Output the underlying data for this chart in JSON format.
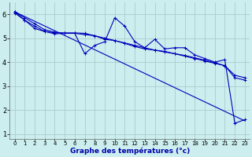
{
  "title": "Graphe des températures (°c)",
  "background_color": "#cceeee",
  "grid_color": "#aacccc",
  "line_color": "#0000bb",
  "xlim": [
    -0.5,
    23.5
  ],
  "ylim": [
    0.8,
    6.5
  ],
  "yticks": [
    1,
    2,
    3,
    4,
    5,
    6
  ],
  "xticks": [
    0,
    1,
    2,
    3,
    4,
    5,
    6,
    7,
    8,
    9,
    10,
    11,
    12,
    13,
    14,
    15,
    16,
    17,
    18,
    19,
    20,
    21,
    22,
    23
  ],
  "line1_x": [
    0,
    1,
    2,
    3,
    4,
    5,
    6,
    7,
    8,
    9,
    10,
    11,
    12,
    13,
    14,
    15,
    16,
    17,
    18,
    19,
    20,
    21,
    22,
    23
  ],
  "line1_y": [
    6.1,
    5.85,
    5.6,
    5.35,
    5.25,
    5.2,
    5.2,
    5.15,
    5.1,
    5.0,
    4.9,
    4.8,
    4.7,
    4.6,
    4.5,
    4.45,
    4.35,
    4.25,
    4.15,
    4.05,
    3.95,
    3.85,
    3.45,
    3.35
  ],
  "line2_x": [
    0,
    1,
    2,
    3,
    4,
    5,
    6,
    7,
    8,
    9,
    10,
    11,
    12,
    13,
    14,
    15,
    16,
    17,
    18,
    19,
    20,
    21,
    22,
    23
  ],
  "line2_y": [
    6.05,
    5.75,
    5.4,
    5.28,
    5.22,
    5.22,
    5.22,
    5.2,
    5.1,
    4.95,
    4.9,
    4.78,
    4.65,
    4.55,
    4.5,
    4.42,
    4.35,
    4.28,
    4.18,
    4.08,
    3.98,
    3.85,
    3.35,
    3.25
  ],
  "line3_x": [
    0,
    1,
    2,
    3,
    4,
    5,
    6,
    7,
    8,
    9,
    10,
    11,
    12,
    13,
    14,
    15,
    16,
    17,
    18,
    19,
    20,
    21,
    22,
    23
  ],
  "line3_y": [
    6.1,
    5.75,
    5.5,
    5.28,
    5.18,
    5.2,
    5.2,
    4.35,
    4.7,
    4.85,
    5.85,
    5.5,
    4.85,
    4.6,
    4.95,
    4.55,
    4.6,
    4.6,
    4.3,
    4.15,
    4.0,
    4.1,
    1.45,
    1.6
  ],
  "line4_x": [
    0,
    23
  ],
  "line4_y": [
    6.1,
    1.55
  ]
}
